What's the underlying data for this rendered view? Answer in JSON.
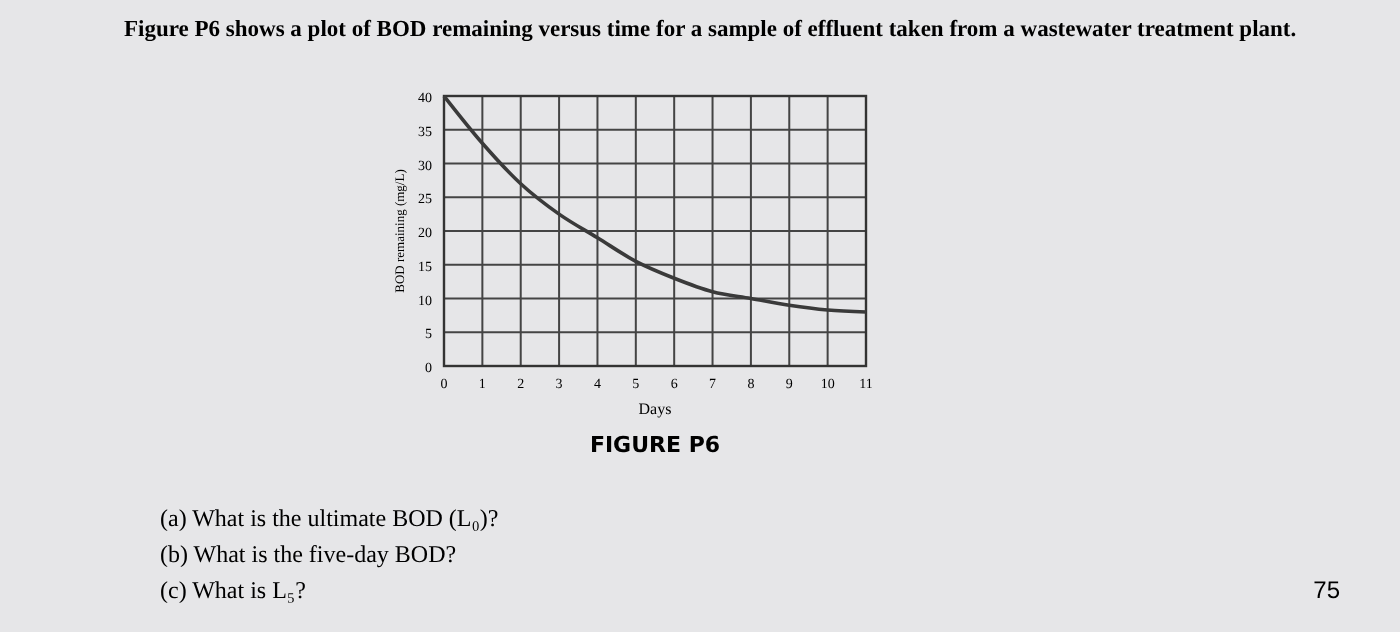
{
  "chart_data": {
    "type": "line",
    "title": "Figure P6 shows a plot of BOD remaining versus time for a sample of effluent taken from a wastewater treatment plant.",
    "xlabel": "Days",
    "ylabel": "BOD remaining (mg/L)",
    "x": [
      0,
      1,
      2,
      3,
      4,
      5,
      6,
      7,
      8,
      9,
      10,
      11
    ],
    "series": [
      {
        "color": "#3a3a3a",
        "values": [
          40,
          33,
          27,
          22.5,
          19,
          15.5,
          13,
          11,
          10,
          9,
          8.3,
          8
        ]
      }
    ],
    "xlim": [
      0,
      11
    ],
    "xticks": [
      0,
      1,
      2,
      3,
      4,
      5,
      6,
      7,
      8,
      9,
      10,
      11
    ],
    "ylim": [
      0,
      40
    ],
    "yticks": [
      0,
      5,
      10,
      15,
      20,
      25,
      30,
      35,
      40
    ],
    "grid": true,
    "marker": "none",
    "line_style": "solid",
    "annotations": [
      "FIGURE P6",
      "(a) What is the ultimate BOD (L₀)?",
      "(b) What is the five-day BOD?",
      "(c) What is L₅?",
      "75"
    ]
  }
}
